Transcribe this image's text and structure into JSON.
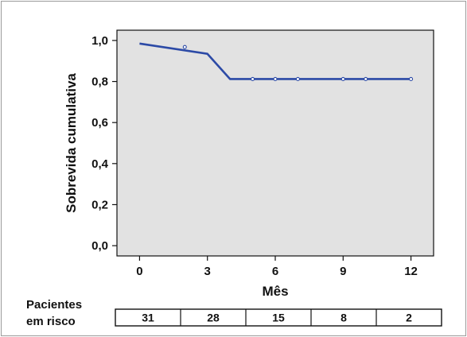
{
  "chart_data": {
    "type": "line",
    "title": "",
    "xlabel": "Mês",
    "ylabel": "Sobrevida cumulativa",
    "xlim": [
      -1,
      13
    ],
    "ylim": [
      -0.05,
      1.05
    ],
    "x_ticks": [
      0,
      3,
      6,
      9,
      12
    ],
    "x_tick_labels": [
      "0",
      "3",
      "6",
      "9",
      "12"
    ],
    "y_ticks": [
      0.0,
      0.2,
      0.4,
      0.6,
      0.8,
      1.0
    ],
    "y_tick_labels": [
      "0,0",
      "0,2",
      "0,4",
      "0,6",
      "0,8",
      "1,0"
    ],
    "grid": false,
    "series": [
      {
        "x": [
          0,
          3,
          4,
          12
        ],
        "y": [
          0.985,
          0.935,
          0.812,
          0.812
        ]
      }
    ],
    "censored": {
      "x": [
        2,
        5,
        6,
        7,
        9,
        10,
        12
      ],
      "y": [
        0.968,
        0.812,
        0.812,
        0.812,
        0.812,
        0.812,
        0.812
      ]
    },
    "colors": {
      "line": "#2c4aa6",
      "plot_background": "#e2e2e2",
      "frame": "#111111"
    }
  },
  "risk_table": {
    "label_line1": "Pacientes",
    "label_line2": "em risco",
    "values": [
      "31",
      "28",
      "15",
      "8",
      "2"
    ]
  }
}
